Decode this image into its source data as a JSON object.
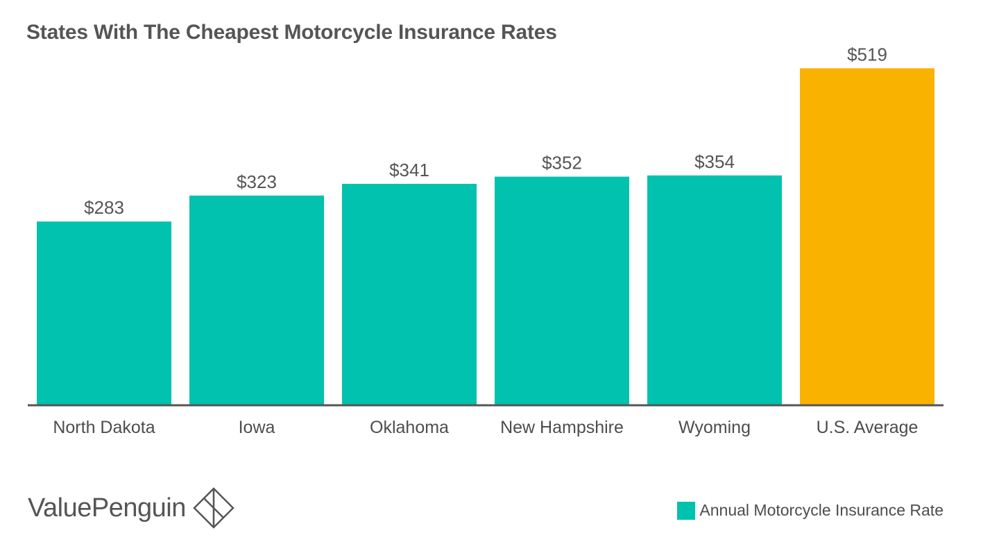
{
  "chart_data": {
    "type": "bar",
    "title": "States With The Cheapest Motorcycle Insurance Rates",
    "xlabel": "",
    "ylabel": "",
    "categories": [
      "North Dakota",
      "Iowa",
      "Oklahoma",
      "New Hampshire",
      "Wyoming",
      "U.S. Average"
    ],
    "series": [
      {
        "name": "Annual Motorcycle Insurance Rate",
        "values": [
          283,
          323,
          341,
          352,
          354,
          519
        ],
        "labels": [
          "$283",
          "$323",
          "$341",
          "$352",
          "$354",
          "$519"
        ]
      }
    ],
    "ylim": [
      0,
      560
    ],
    "grid": false,
    "legend": "bottom-right",
    "colors": {
      "default_bar": "#00c2ae",
      "highlight_bar": "#f9b200",
      "axis": "#555555"
    },
    "highlight_category": "U.S. Average"
  },
  "brand": {
    "name": "ValuePenguin",
    "icon": "valuepenguin-logo-icon"
  },
  "legend": {
    "label": "Annual Motorcycle Insurance Rate"
  }
}
